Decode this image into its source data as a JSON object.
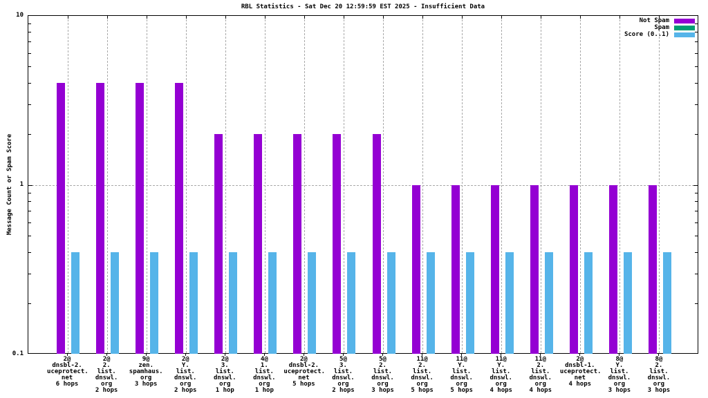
{
  "title": "RBL Statistics - Sat Dec 20 12:59:59 EST 2025 - Insufficient Data",
  "ylabel": "Message Count or Spam Score",
  "legend": [
    {
      "label": "Not Spam",
      "color": "#9400d3"
    },
    {
      "label": "Spam",
      "color": "#009e73"
    },
    {
      "label": "Score (0..1)",
      "color": "#56b4e9"
    }
  ],
  "y_tick_labels": [
    "10",
    "1",
    "0.1"
  ],
  "chart_data": {
    "type": "bar",
    "y_scale": "log",
    "ylim": [
      0.1,
      10
    ],
    "grid": true,
    "legend_position": "top-right",
    "title": "RBL Statistics - Sat Dec 20 12:59:59 EST 2025 - Insufficient Data",
    "xlabel": "",
    "ylabel": "Message Count or Spam Score",
    "y_ticks": [
      10,
      1,
      0.1
    ],
    "categories": [
      "2@ dnsbl-2.uceprotect.net 6 hops",
      "2@ 2.list.dnswl.org 2 hops",
      "9@ zen.spamhaus.org 3 hops",
      "2@ Y.list.dnswl.org 2 hops",
      "2@ 3.list.dnswl.org 1 hop",
      "4@ 1.list.dnswl.org 1 hop",
      "2@ dnsbl-2.uceprotect.net 5 hops",
      "5@ 3.list.dnswl.org 2 hops",
      "5@ 2.list.dnswl.org 3 hops",
      "11@ 2.list.dnswl.org 5 hops",
      "11@ Y.list.dnswl.org 5 hops",
      "11@ Y.list.dnswl.org 4 hops",
      "11@ 2.list.dnswl.org 4 hops",
      "2@ dnsbl-1.uceprotect.net 4 hops",
      "8@ Y.list.dnswl.org 3 hops",
      "8@ 2.list.dnswl.org 3 hops"
    ],
    "category_lines": [
      [
        "2@",
        "dnsbl-2.",
        "uceprotect.",
        "net",
        "6 hops"
      ],
      [
        "2@",
        "2.",
        "list.",
        "dnswl.",
        "org",
        "2 hops"
      ],
      [
        "9@",
        "zen.",
        "spamhaus.",
        "org",
        "3 hops"
      ],
      [
        "2@",
        "Y.",
        "list.",
        "dnswl.",
        "org",
        "2 hops"
      ],
      [
        "2@",
        "3.",
        "list.",
        "dnswl.",
        "org",
        "1 hop"
      ],
      [
        "4@",
        "1.",
        "list.",
        "dnswl.",
        "org",
        "1 hop"
      ],
      [
        "2@",
        "dnsbl-2.",
        "uceprotect.",
        "net",
        "5 hops"
      ],
      [
        "5@",
        "3.",
        "list.",
        "dnswl.",
        "org",
        "2 hops"
      ],
      [
        "5@",
        "2.",
        "list.",
        "dnswl.",
        "org",
        "3 hops"
      ],
      [
        "11@",
        "2.",
        "list.",
        "dnswl.",
        "org",
        "5 hops"
      ],
      [
        "11@",
        "Y.",
        "list.",
        "dnswl.",
        "org",
        "5 hops"
      ],
      [
        "11@",
        "Y.",
        "list.",
        "dnswl.",
        "org",
        "4 hops"
      ],
      [
        "11@",
        "2.",
        "list.",
        "dnswl.",
        "org",
        "4 hops"
      ],
      [
        "2@",
        "dnsbl-1.",
        "uceprotect.",
        "net",
        "4 hops"
      ],
      [
        "8@",
        "Y.",
        "list.",
        "dnswl.",
        "org",
        "3 hops"
      ],
      [
        "8@",
        "2.",
        "list.",
        "dnswl.",
        "org",
        "3 hops"
      ]
    ],
    "series": [
      {
        "name": "Not Spam",
        "color": "#9400d3",
        "values": [
          4,
          4,
          4,
          4,
          2,
          2,
          2,
          2,
          2,
          1,
          1,
          1,
          1,
          1,
          1,
          1
        ]
      },
      {
        "name": "Spam",
        "color": "#009e73",
        "values": [
          0,
          0,
          0,
          0,
          0,
          0,
          0,
          0,
          0,
          0,
          0,
          0,
          0,
          0,
          0,
          0
        ]
      },
      {
        "name": "Score (0..1)",
        "color": "#56b4e9",
        "values": [
          0.4,
          0.4,
          0.4,
          0.4,
          0.4,
          0.4,
          0.4,
          0.4,
          0.4,
          0.4,
          0.4,
          0.4,
          0.4,
          0.4,
          0.4,
          0.4
        ]
      }
    ]
  }
}
